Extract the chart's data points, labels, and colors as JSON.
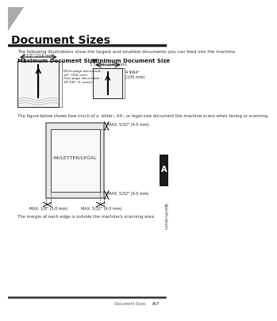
{
  "title": "Document Sizes",
  "subtitle": "The following illustrations show the largest and smallest documents you can feed into the machine.",
  "max_doc_label": "Maximum Document Size",
  "min_doc_label": "Minimum Document Size",
  "max_width_text": "8 1/2\" (216 mm)",
  "max_multipage_text": "Multi-page document :\n14\" (356 mm)\nOne-page document :\n39 3/8\" (1 meter)",
  "min_width_text": "5 53/64\" (148 mm)",
  "min_height_text": "4 9/64\"\n(105 mm)",
  "scan_label": "A4/LETTER/LEGAL",
  "scan_top_text": "MAX. 5/32\" (4.0 mm)",
  "scan_bottom_text": "MAX. 5/32\" (4.0 mm)",
  "scan_left_text": "MAX. 1/8\" (3.0 mm)",
  "scan_right_text": "MAX. 5/32\" (4.0 mm)",
  "scan_caption": "The margin at each edge is outside the machine's scanning area.",
  "scan_figure_caption": "The figure below shows how much of a  letter-, A4-, or legal-size document the machine scans when faxing or scanning.",
  "footer_left": "Document Sizes",
  "footer_right": "A-7",
  "sidebar_text": "Specifications",
  "bg_color": "#ffffff",
  "header_triangle_color": "#888888",
  "sidebar_bg": "#1a1a1a",
  "sidebar_letter": "A",
  "thick_line_color": "#222222",
  "thin_line_color": "#555555",
  "doc_box_color": "#dddddd",
  "scan_outer_color": "#999999",
  "scan_inner_bg": "#f0f0f0"
}
